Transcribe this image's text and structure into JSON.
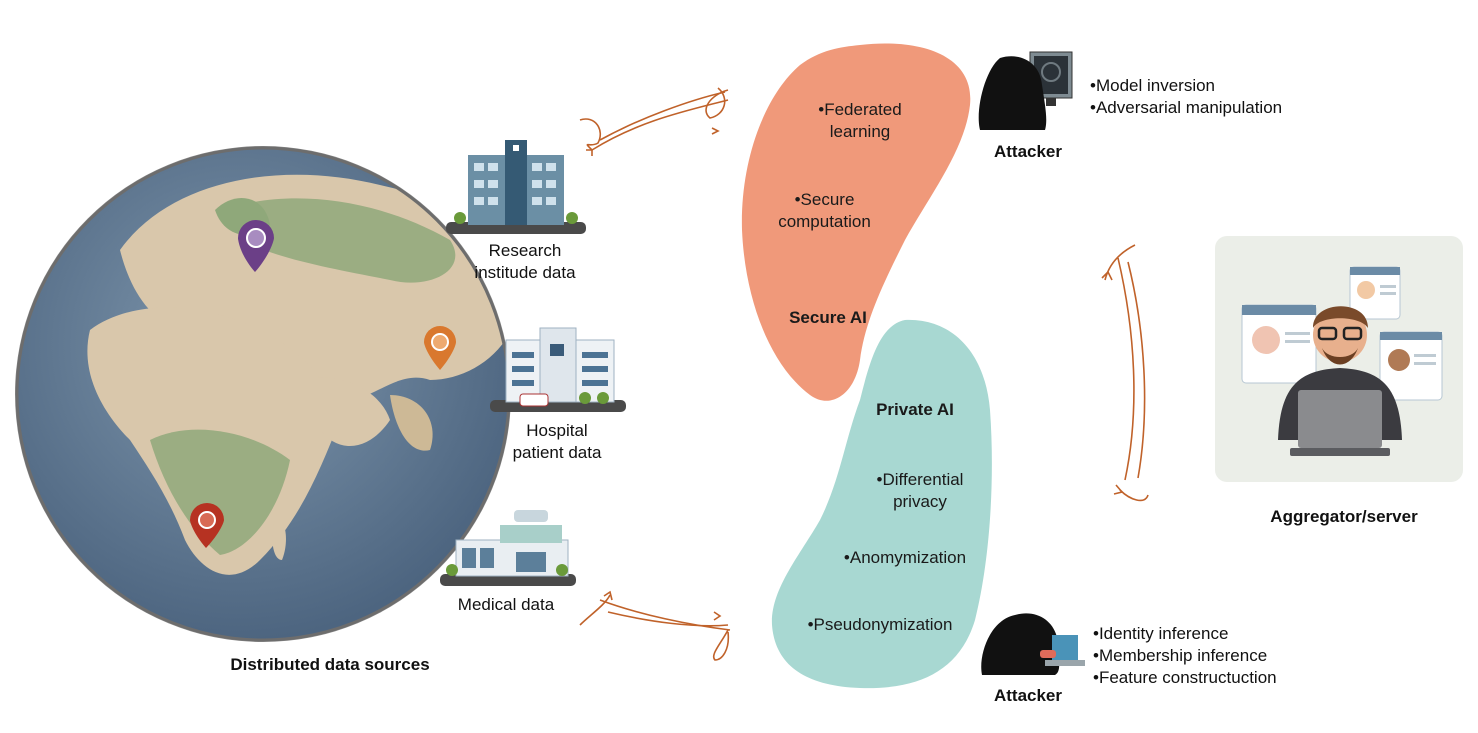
{
  "sources": {
    "research": "Research\ninstitude data",
    "hospital": "Hospital\npatient data",
    "medical": "Medical data",
    "caption": "Distributed data sources"
  },
  "secure_ai": {
    "title": "Secure AI",
    "items": [
      "Federated\nlearning",
      "Secure\ncomputation"
    ]
  },
  "private_ai": {
    "title": "Private AI",
    "items": [
      "Differential\nprivacy",
      "Anomymization",
      "Pseudonymization"
    ]
  },
  "attacker_top": {
    "label": "Attacker",
    "threats": [
      "Model inversion",
      "Adversarial manipulation"
    ]
  },
  "attacker_bottom": {
    "label": "Attacker",
    "threats": [
      "Identity inference",
      "Membership inference",
      "Feature constructuction"
    ]
  },
  "aggregator": {
    "label": "Aggregator/server"
  },
  "colors": {
    "secure": "#f0997a",
    "private": "#a8d8d2",
    "arrow": "#c0622a",
    "ocean": "#5f7a94",
    "land": "#d9c7ab",
    "green": "#8fa87a"
  }
}
